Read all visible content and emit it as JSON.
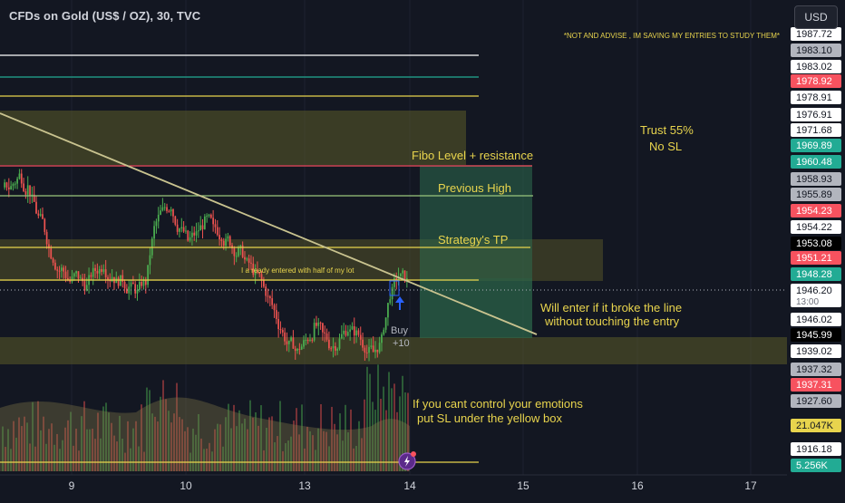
{
  "header": {
    "symbol_title": "CFDs on Gold (US$ / OZ), 30, TVC",
    "currency_button": "USD"
  },
  "disclaimer": "*NOT AND ADVISE , IM SAVING MY ENTRIES TO STUDY THEM*",
  "annotations": {
    "trust": "Trust 55%",
    "no_sl": "No SL",
    "fibo": "Fibo Level + resistance",
    "prev_high": "Previous High",
    "strategy_tp": "Strategy's TP",
    "already_entered": "I a ready entered with half of my lot",
    "will_enter_1": "Will enter if it broke the line",
    "will_enter_2": "without touching the entry",
    "emotions_1": "If you cant control your emotions",
    "emotions_2": "put SL under the yellow box",
    "buy_label": "Buy",
    "buy_qty": "+10"
  },
  "colors": {
    "background": "#131722",
    "up_candle": "#4caf50",
    "down_candle": "#ef5350",
    "zone_fill": "#6b6a2a",
    "tp_fill": "#2e6b4f",
    "trendline": "#c9c38f",
    "annotation_text": "#e8d44d",
    "buy_arrow": "#2962ff"
  },
  "price_scale": [
    {
      "label": "1987.72",
      "bg": "#ffffff",
      "fg": "#131722"
    },
    {
      "label": "1983.10",
      "bg": "#b2b5be",
      "fg": "#131722"
    },
    {
      "label": "1983.02",
      "bg": "#ffffff",
      "fg": "#131722"
    },
    {
      "label": "1978.92",
      "bg": "#f7525f",
      "fg": "#ffffff"
    },
    {
      "label": "1978.91",
      "bg": "#ffffff",
      "fg": "#131722"
    },
    {
      "label": "1976.91",
      "bg": "#ffffff",
      "fg": "#131722"
    },
    {
      "label": "1971.68",
      "bg": "#ffffff",
      "fg": "#131722"
    },
    {
      "label": "1969.89",
      "bg": "#22ab94",
      "fg": "#ffffff"
    },
    {
      "label": "1960.48",
      "bg": "#22ab94",
      "fg": "#ffffff"
    },
    {
      "label": "1958.93",
      "bg": "#b2b5be",
      "fg": "#131722"
    },
    {
      "label": "1955.89",
      "bg": "#b2b5be",
      "fg": "#131722"
    },
    {
      "label": "1954.23",
      "bg": "#f7525f",
      "fg": "#ffffff"
    },
    {
      "label": "1954.22",
      "bg": "#ffffff",
      "fg": "#131722"
    },
    {
      "label": "1953.08",
      "bg": "#000000",
      "fg": "#ffffff"
    },
    {
      "label": "1951.21",
      "bg": "#f7525f",
      "fg": "#ffffff"
    },
    {
      "label": "1948.28",
      "bg": "#22ab94",
      "fg": "#ffffff"
    },
    {
      "label": "1946.20",
      "bg": "#ffffff",
      "fg": "#131722",
      "sub": "13:00"
    },
    {
      "label": "1946.02",
      "bg": "#ffffff",
      "fg": "#131722"
    },
    {
      "label": "1945.99",
      "bg": "#000000",
      "fg": "#ffffff"
    },
    {
      "label": "1939.02",
      "bg": "#ffffff",
      "fg": "#131722"
    },
    {
      "label": "1937.32",
      "bg": "#b2b5be",
      "fg": "#131722"
    },
    {
      "label": "1937.31",
      "bg": "#f7525f",
      "fg": "#ffffff"
    },
    {
      "label": "1927.60",
      "bg": "#b2b5be",
      "fg": "#131722"
    },
    {
      "label": "21.047K",
      "bg": "#e8d44d",
      "fg": "#131722"
    },
    {
      "label": "1916.18",
      "bg": "#ffffff",
      "fg": "#131722"
    },
    {
      "label": "5.256K",
      "bg": "#22ab94",
      "fg": "#ffffff"
    }
  ],
  "chart_data": {
    "type": "candlestick",
    "x_ticks": [
      "9",
      "10",
      "13",
      "14",
      "15",
      "16",
      "17"
    ],
    "close_path": [
      1962,
      1964,
      1962,
      1958,
      1955,
      1950,
      1948,
      1946,
      1947,
      1945,
      1948,
      1949,
      1947,
      1946,
      1945,
      1944,
      1946,
      1955,
      1958,
      1959,
      1955,
      1953,
      1954,
      1956,
      1955,
      1954,
      1953,
      1951,
      1949,
      1947,
      1945,
      1942,
      1938,
      1935,
      1934,
      1936,
      1938,
      1937,
      1935,
      1936,
      1938,
      1937,
      1935,
      1934,
      1936,
      1944,
      1947,
      1946
    ],
    "volume_labels": [
      "21.047K",
      "5.256K"
    ],
    "last_price": "1946.20",
    "last_time": "13:00"
  }
}
